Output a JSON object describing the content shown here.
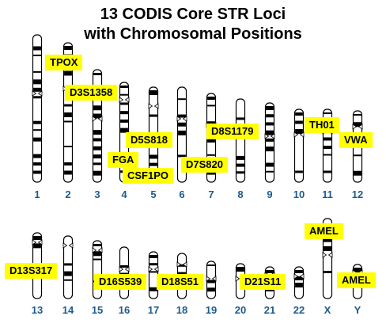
{
  "title": {
    "line1": "13 CODIS Core STR Loci",
    "line2": "with Chromosomal Positions"
  },
  "chromosome_labels": {
    "c1": "1",
    "c2": "2",
    "c3": "3",
    "c4": "4",
    "c5": "5",
    "c6": "6",
    "c7": "7",
    "c8": "8",
    "c9": "9",
    "c10": "10",
    "c11": "11",
    "c12": "12",
    "c13": "13",
    "c14": "14",
    "c15": "15",
    "c16": "16",
    "c17": "17",
    "c18": "18",
    "c19": "19",
    "c20": "20",
    "c21": "21",
    "c22": "22",
    "cX": "X",
    "cY": "Y"
  },
  "loci": {
    "tpox": "TPOX",
    "d3s1358": "D3S1358",
    "d5s818": "D5S818",
    "fga": "FGA",
    "csf1po": "CSF1PO",
    "d7s820": "D7S820",
    "d8s1179": "D8S1179",
    "th01": "TH01",
    "vwa": "VWA",
    "d13s317": "D13S317",
    "d16s539": "D16S539",
    "d18s51": "D18S51",
    "d21s11": "D21S11",
    "amel_x": "AMEL",
    "amel_y": "AMEL"
  },
  "colors": {
    "label_background": "#ffff00",
    "chromosome_number": "#1f5a8c",
    "band_dark": "#000000",
    "band_light": "#ffffff"
  }
}
